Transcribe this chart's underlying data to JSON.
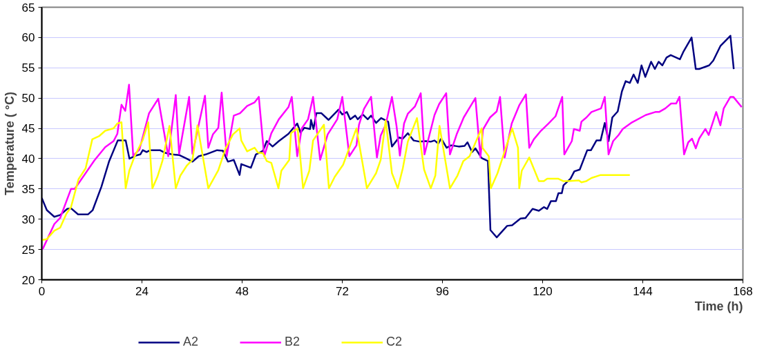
{
  "chart_data": {
    "type": "line",
    "xlabel": "Time (h)",
    "ylabel": "Temperature ( °C)",
    "xlim": [
      0,
      168
    ],
    "ylim": [
      20,
      65
    ],
    "xticks": [
      0,
      24,
      48,
      72,
      96,
      120,
      144,
      168
    ],
    "yticks": [
      20,
      25,
      30,
      35,
      40,
      45,
      50,
      55,
      60,
      65
    ],
    "grid": "y",
    "legend": "bottom",
    "line_style": "solid",
    "series": [
      {
        "name": "A2",
        "color": "#000080",
        "x": [
          0,
          0.3,
          1.2,
          3,
          4.4,
          6.1,
          7,
          8.7,
          11.1,
          12.2,
          14.3,
          16.1,
          18.2,
          20.1,
          21,
          22.5,
          23.6,
          24.2,
          25.1,
          26,
          28.3,
          29.4,
          31.2,
          32.9,
          34.7,
          36.1,
          37.6,
          39.3,
          42,
          43.4,
          44.6,
          46,
          47.4,
          47.8,
          50.1,
          51.3,
          53,
          53.9,
          55.3,
          56.8,
          59.1,
          61.2,
          62,
          62.9,
          64.3,
          64.5,
          65.1,
          65.8,
          67,
          68.7,
          71.1,
          72,
          73.1,
          73.9,
          75.1,
          75.7,
          76.9,
          78.1,
          78.9,
          80.1,
          81.3,
          83,
          83.9,
          85.6,
          86.5,
          87.7,
          89.1,
          90.6,
          92,
          93.2,
          94.1,
          95,
          95.7,
          97,
          98.1,
          99.9,
          101.3,
          102,
          103.1,
          103.9,
          105.4,
          106.9,
          107.5,
          109,
          111.5,
          112.7,
          114.7,
          115.9,
          117.6,
          119.1,
          120.3,
          121.1,
          122,
          123.2,
          123.8,
          124.6,
          125,
          126.7,
          127.6,
          128.9,
          130.7,
          131.6,
          132.9,
          133.9,
          134.9,
          135.8,
          136.7,
          138,
          139,
          139.9,
          140.9,
          141.8,
          142.8,
          143.7,
          144.6,
          146,
          146.9,
          147.8,
          148.7,
          149.7,
          150.7,
          152.9,
          153.7,
          155.7,
          156.7,
          157.5,
          159.9,
          160.9,
          162.6,
          165,
          165.8
        ],
        "values": [
          33.5,
          33,
          31.5,
          30.4,
          30.7,
          31.7,
          31.8,
          30.8,
          30.8,
          31.5,
          35.4,
          39.5,
          43,
          43,
          40,
          40.5,
          40.7,
          41.4,
          41.1,
          41.4,
          41.4,
          41,
          40.7,
          40.6,
          40,
          39.5,
          40.4,
          40.7,
          41.4,
          41.3,
          39.5,
          39.8,
          37.3,
          39.1,
          38.5,
          40.7,
          41.3,
          42.9,
          42,
          42.9,
          44.1,
          45.8,
          44.3,
          45.1,
          44.9,
          46.4,
          44.9,
          47.5,
          47.5,
          46.4,
          48.1,
          47.3,
          47.7,
          46.5,
          47.1,
          46.5,
          47.3,
          46.5,
          47.1,
          45.9,
          46.7,
          46.1,
          42,
          43.5,
          43.3,
          44.2,
          43,
          42.8,
          42.9,
          42.8,
          43,
          42.5,
          43.3,
          41.8,
          42.2,
          42,
          42.1,
          42.7,
          41.1,
          41.7,
          40.1,
          39.6,
          28.2,
          27,
          28.9,
          29,
          30.1,
          30.2,
          31.7,
          31.4,
          32,
          31.7,
          33,
          33,
          34.3,
          34.3,
          35.6,
          36.7,
          37.9,
          38.2,
          41.4,
          41.4,
          43,
          43,
          45.9,
          42.9,
          46.8,
          47.8,
          51.1,
          52.8,
          52.5,
          53.9,
          52.5,
          55.4,
          53.5,
          56,
          54.8,
          56,
          55.4,
          56.7,
          57.1,
          56.4,
          57.6,
          60,
          54.8,
          54.8,
          55.4,
          56.2,
          58.6,
          60.3,
          54.8
        ]
      },
      {
        "name": "B2",
        "color": "#ff00ff",
        "x": [
          0,
          0.3,
          3,
          4.4,
          7,
          7.9,
          10.2,
          12.6,
          15.2,
          17.2,
          18.1,
          19.1,
          20,
          20.9,
          21.9,
          23.4,
          25.7,
          27.9,
          30.3,
          32.1,
          32.9,
          35.3,
          36.1,
          39.1,
          39.9,
          41,
          42.3,
          43.1,
          44.3,
          46,
          47.5,
          49.2,
          51,
          52,
          53.3,
          55,
          56.8,
          59.1,
          59.9,
          61.2,
          62.3,
          63.8,
          65,
          66.7,
          68.5,
          70.8,
          72,
          73.7,
          75.4,
          76,
          77.2,
          78.9,
          80.3,
          81.2,
          82.4,
          83.9,
          85,
          85.8,
          86.8,
          87.7,
          89.4,
          90.8,
          91.7,
          94.1,
          95.2,
          96.9,
          97.8,
          99.4,
          101.1,
          102.5,
          103.9,
          105.1,
          105.7,
          107.4,
          109,
          109.8,
          110.9,
          112.6,
          114.4,
          116,
          116.8,
          117.9,
          119.6,
          121.4,
          123.1,
          124.7,
          125.2,
          127,
          127.5,
          128.9,
          129.3,
          130.5,
          131.7,
          134,
          134.9,
          135.8,
          136.9,
          138.2,
          139.2,
          141.2,
          144.7,
          147,
          147.9,
          149.4,
          150.8,
          152,
          152.8,
          153.9,
          154.9,
          155.8,
          156.7,
          157.5,
          159,
          159.8,
          161.6,
          162.6,
          163.4,
          165,
          165.7,
          167.7
        ],
        "values": [
          25,
          25.2,
          29.2,
          30.2,
          35,
          35,
          37.3,
          39.7,
          41.9,
          42.9,
          44.1,
          48.9,
          47.9,
          52.2,
          40.5,
          41.5,
          47.5,
          49.9,
          40.4,
          50.5,
          40.8,
          50.2,
          40.8,
          50.4,
          41.8,
          44,
          45.1,
          50.9,
          40.4,
          47.1,
          47.5,
          48.7,
          49.3,
          50.2,
          40.4,
          44.2,
          46.5,
          48.5,
          50.2,
          40.4,
          45,
          46.5,
          50.2,
          39.8,
          44,
          46.5,
          50.2,
          40.4,
          42.2,
          45.6,
          48.2,
          50.2,
          40.2,
          43.8,
          45.6,
          50.2,
          45.4,
          40.5,
          45.8,
          47.4,
          48.6,
          50.8,
          40.7,
          47.2,
          49,
          50.8,
          40.7,
          44,
          46.8,
          48.4,
          50,
          40.2,
          44.8,
          46.8,
          47.8,
          50.2,
          40.2,
          45.8,
          48.8,
          50.6,
          41.8,
          43.2,
          44.6,
          45.8,
          47,
          50.2,
          40.7,
          42.9,
          44.9,
          44.6,
          46.1,
          46.8,
          47.7,
          48.3,
          50.2,
          40.7,
          42.9,
          43.9,
          44.9,
          45.9,
          47.2,
          47.7,
          47.7,
          48.3,
          49.1,
          49.1,
          50.2,
          40.7,
          42.7,
          43.3,
          41.7,
          43.3,
          44.9,
          43.9,
          47.7,
          45.5,
          48.3,
          50.2,
          50.2,
          48.5
        ]
      },
      {
        "name": "C2",
        "color": "#ffff00",
        "x": [
          0,
          0.3,
          1.2,
          3,
          4.4,
          5.9,
          7,
          8.8,
          10.5,
          12.1,
          13.7,
          15.2,
          17.2,
          18.1,
          19.1,
          20.1,
          21,
          22.2,
          24.2,
          25.5,
          26.5,
          27.7,
          28.9,
          30.6,
          32.1,
          33.2,
          34.7,
          36.1,
          37.3,
          39.9,
          42.3,
          44,
          45.8,
          47.4,
          47.8,
          49.2,
          51,
          51.8,
          53,
          53.9,
          55,
          56.7,
          57.4,
          59.3,
          59.7,
          61.3,
          62.6,
          64.1,
          65,
          67.6,
          68.8,
          70.2,
          72.2,
          75.4,
          77.9,
          80.1,
          81.2,
          82.4,
          83.9,
          85.3,
          86.5,
          87.7,
          89.9,
          91.6,
          93.2,
          94.3,
          95.3,
          97.8,
          99.6,
          101,
          102.5,
          105.4,
          105.6,
          107.1,
          107.6,
          109.2,
          112.7,
          114.1,
          114.4,
          115,
          116.8,
          119.1,
          120.3,
          121.1,
          123.7,
          124.9,
          126.1,
          128.7,
          129.3,
          130.5,
          131.7,
          133.9,
          140.9
        ],
        "values": [
          26.5,
          26.6,
          26.7,
          28.1,
          28.6,
          30.9,
          32,
          36.6,
          38.4,
          43.2,
          43.7,
          44.6,
          45,
          45.8,
          46,
          35.1,
          38.1,
          40.3,
          43.1,
          46,
          35.1,
          37,
          39.6,
          45.4,
          35.1,
          37.2,
          38.8,
          39.8,
          45.5,
          35.1,
          38.1,
          41.6,
          44,
          45,
          43,
          41.2,
          41.8,
          41,
          40.9,
          39.6,
          39.3,
          35.1,
          38,
          39.8,
          44.2,
          45,
          35.1,
          38,
          43,
          45.6,
          35.1,
          37,
          39,
          45,
          35.1,
          37.6,
          39.8,
          46.3,
          37.6,
          35.1,
          38.4,
          42.8,
          46.7,
          38.2,
          35.1,
          37.2,
          45.4,
          35.1,
          37.2,
          39.6,
          40.4,
          45,
          41.8,
          40.4,
          35.1,
          37.6,
          45,
          41.8,
          35.1,
          38,
          40.2,
          36.3,
          36.3,
          36.7,
          36.7,
          36.3,
          36.3,
          36.4,
          36.1,
          36.3,
          36.8,
          37.3,
          37.3
        ]
      }
    ]
  }
}
